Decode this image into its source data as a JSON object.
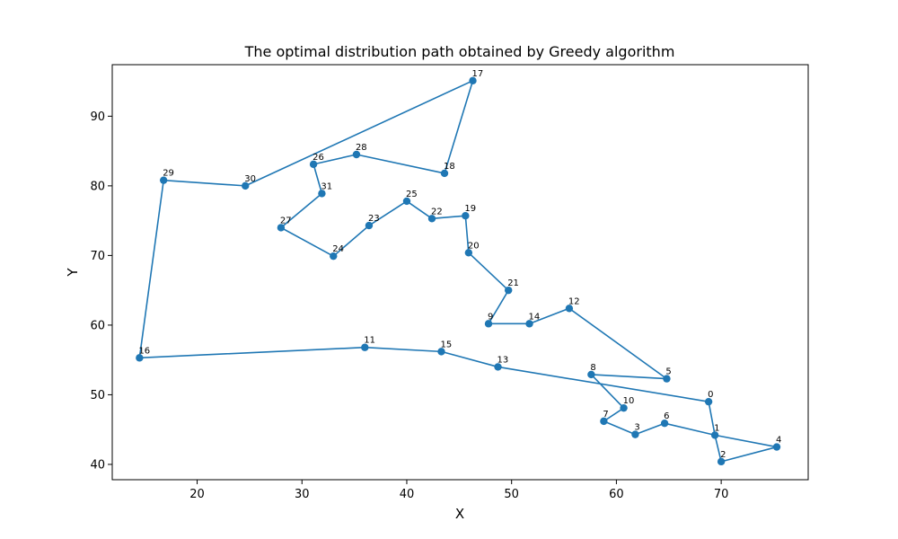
{
  "chart_data": {
    "type": "line",
    "title": "The optimal distribution path obtained by Greedy algorithm",
    "xlabel": "X",
    "ylabel": "Y",
    "xlim": [
      11.9,
      78.3
    ],
    "ylim": [
      37.8,
      97.4
    ],
    "xticks": [
      20,
      30,
      40,
      50,
      60,
      70
    ],
    "yticks": [
      40,
      50,
      60,
      70,
      80,
      90
    ],
    "grid": false,
    "marker": "circle",
    "color": "#1f77b4",
    "nodes": [
      {
        "id": "0",
        "x": 68.8,
        "y": 49.0
      },
      {
        "id": "1",
        "x": 69.4,
        "y": 44.2
      },
      {
        "id": "2",
        "x": 70.0,
        "y": 40.4
      },
      {
        "id": "3",
        "x": 61.8,
        "y": 44.3
      },
      {
        "id": "4",
        "x": 75.3,
        "y": 42.5
      },
      {
        "id": "5",
        "x": 64.8,
        "y": 52.3
      },
      {
        "id": "6",
        "x": 64.6,
        "y": 45.9
      },
      {
        "id": "7",
        "x": 58.8,
        "y": 46.2
      },
      {
        "id": "8",
        "x": 57.6,
        "y": 52.9
      },
      {
        "id": "9",
        "x": 47.8,
        "y": 60.2
      },
      {
        "id": "10",
        "x": 60.7,
        "y": 48.1
      },
      {
        "id": "11",
        "x": 36.0,
        "y": 56.8
      },
      {
        "id": "12",
        "x": 55.5,
        "y": 62.4
      },
      {
        "id": "13",
        "x": 48.7,
        "y": 54.0
      },
      {
        "id": "14",
        "x": 51.7,
        "y": 60.2
      },
      {
        "id": "15",
        "x": 43.3,
        "y": 56.2
      },
      {
        "id": "16",
        "x": 14.5,
        "y": 55.3
      },
      {
        "id": "17",
        "x": 46.3,
        "y": 95.1
      },
      {
        "id": "18",
        "x": 43.6,
        "y": 81.8
      },
      {
        "id": "19",
        "x": 45.6,
        "y": 75.7
      },
      {
        "id": "20",
        "x": 45.9,
        "y": 70.4
      },
      {
        "id": "21",
        "x": 49.7,
        "y": 65.0
      },
      {
        "id": "22",
        "x": 42.4,
        "y": 75.3
      },
      {
        "id": "23",
        "x": 36.4,
        "y": 74.3
      },
      {
        "id": "24",
        "x": 33.0,
        "y": 69.9
      },
      {
        "id": "25",
        "x": 40.0,
        "y": 77.8
      },
      {
        "id": "26",
        "x": 31.1,
        "y": 83.1
      },
      {
        "id": "27",
        "x": 28.0,
        "y": 74.0
      },
      {
        "id": "28",
        "x": 35.2,
        "y": 84.5
      },
      {
        "id": "29",
        "x": 16.8,
        "y": 80.8
      },
      {
        "id": "30",
        "x": 24.6,
        "y": 80.0
      },
      {
        "id": "31",
        "x": 31.9,
        "y": 78.9
      }
    ],
    "route": [
      "30",
      "17",
      "18",
      "28",
      "26",
      "31",
      "27",
      "24",
      "23",
      "25",
      "22",
      "19",
      "20",
      "21",
      "9",
      "14",
      "12",
      "5",
      "8",
      "10",
      "7",
      "3",
      "6",
      "1",
      "4",
      "2",
      "1",
      "0",
      "13",
      "15",
      "11",
      "16",
      "29",
      "30"
    ]
  }
}
